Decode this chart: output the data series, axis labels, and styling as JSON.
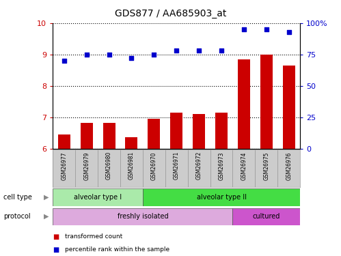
{
  "title": "GDS877 / AA685903_at",
  "samples": [
    "GSM26977",
    "GSM26979",
    "GSM26980",
    "GSM26981",
    "GSM26970",
    "GSM26971",
    "GSM26972",
    "GSM26973",
    "GSM26974",
    "GSM26975",
    "GSM26976"
  ],
  "transformed_count": [
    6.45,
    6.82,
    6.82,
    6.35,
    6.95,
    7.15,
    7.1,
    7.15,
    8.85,
    9.0,
    8.65
  ],
  "percentile_rank": [
    70,
    75,
    75,
    72,
    75,
    78,
    78,
    78,
    95,
    95,
    93
  ],
  "ylim_left": [
    6,
    10
  ],
  "ylim_right": [
    0,
    100
  ],
  "yticks_left": [
    6,
    7,
    8,
    9,
    10
  ],
  "yticks_right": [
    0,
    25,
    50,
    75,
    100
  ],
  "bar_color": "#cc0000",
  "dot_color": "#0000cc",
  "cell_type_groups": [
    {
      "label": "alveolar type I",
      "start": 0,
      "end": 4,
      "color": "#aaeaaa"
    },
    {
      "label": "alveolar type II",
      "start": 4,
      "end": 11,
      "color": "#44dd44"
    }
  ],
  "protocol_groups": [
    {
      "label": "freshly isolated",
      "start": 0,
      "end": 8,
      "color": "#ddaadd"
    },
    {
      "label": "cultured",
      "start": 8,
      "end": 11,
      "color": "#cc55cc"
    }
  ],
  "legend_items": [
    {
      "label": "transformed count",
      "color": "#cc0000"
    },
    {
      "label": "percentile rank within the sample",
      "color": "#0000cc"
    }
  ],
  "bg_color": "#ffffff",
  "grid_color": "#000000",
  "tick_label_color_left": "#cc0000",
  "tick_label_color_right": "#0000cc",
  "sample_box_color": "#cccccc",
  "sample_box_edge": "#999999",
  "row_label_color": "#333333",
  "arrow_color": "#888888"
}
